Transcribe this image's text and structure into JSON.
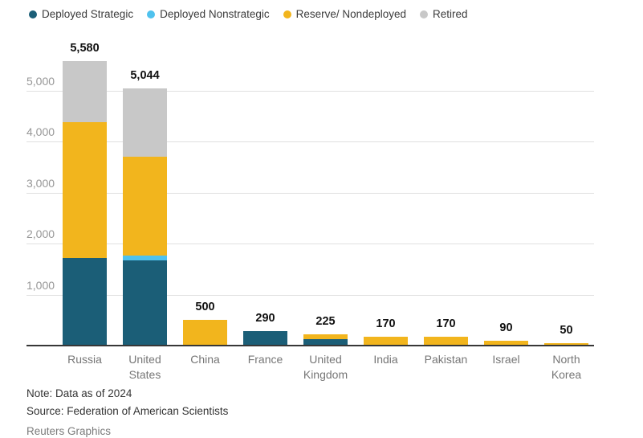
{
  "chart_data": {
    "type": "bar",
    "stacked": true,
    "title": "",
    "xlabel": "",
    "ylabel": "",
    "categories": [
      "Russia",
      "United States",
      "China",
      "France",
      "United Kingdom",
      "India",
      "Pakistan",
      "Israel",
      "North Korea"
    ],
    "series": [
      {
        "name": "Deployed Strategic",
        "color": "#1b5e77",
        "values": [
          1710,
          1670,
          0,
          290,
          120,
          0,
          0,
          0,
          0
        ]
      },
      {
        "name": "Deployed Nonstrategic",
        "color": "#4fc2ee",
        "values": [
          0,
          100,
          0,
          0,
          0,
          0,
          0,
          0,
          0
        ]
      },
      {
        "name": "Reserve/ Nondeployed",
        "color": "#f2b51d",
        "values": [
          2670,
          1938,
          500,
          0,
          105,
          170,
          170,
          90,
          50
        ]
      },
      {
        "name": "Retired",
        "color": "#c8c8c8",
        "values": [
          1200,
          1336,
          0,
          0,
          0,
          0,
          0,
          0,
          0
        ]
      }
    ],
    "totals": [
      5580,
      5044,
      500,
      290,
      225,
      170,
      170,
      90,
      50
    ],
    "total_labels": [
      "5,580",
      "5,044",
      "500",
      "290",
      "225",
      "170",
      "170",
      "90",
      "50"
    ],
    "yticks": [
      1000,
      2000,
      3000,
      4000,
      5000
    ],
    "ytick_labels": [
      "1,000",
      "2,000",
      "3,000",
      "4,000",
      "5,000"
    ],
    "ylim": [
      0,
      5800
    ],
    "grid": true,
    "legend_position": "top",
    "axis_colors": {
      "gridline": "#e0e0e0",
      "baseline": "#373737",
      "tick_text": "#979797"
    }
  },
  "notes": {
    "note": "Note: Data as of 2024",
    "source": "Source: Federation of American Scientists",
    "credit": "Reuters Graphics"
  }
}
